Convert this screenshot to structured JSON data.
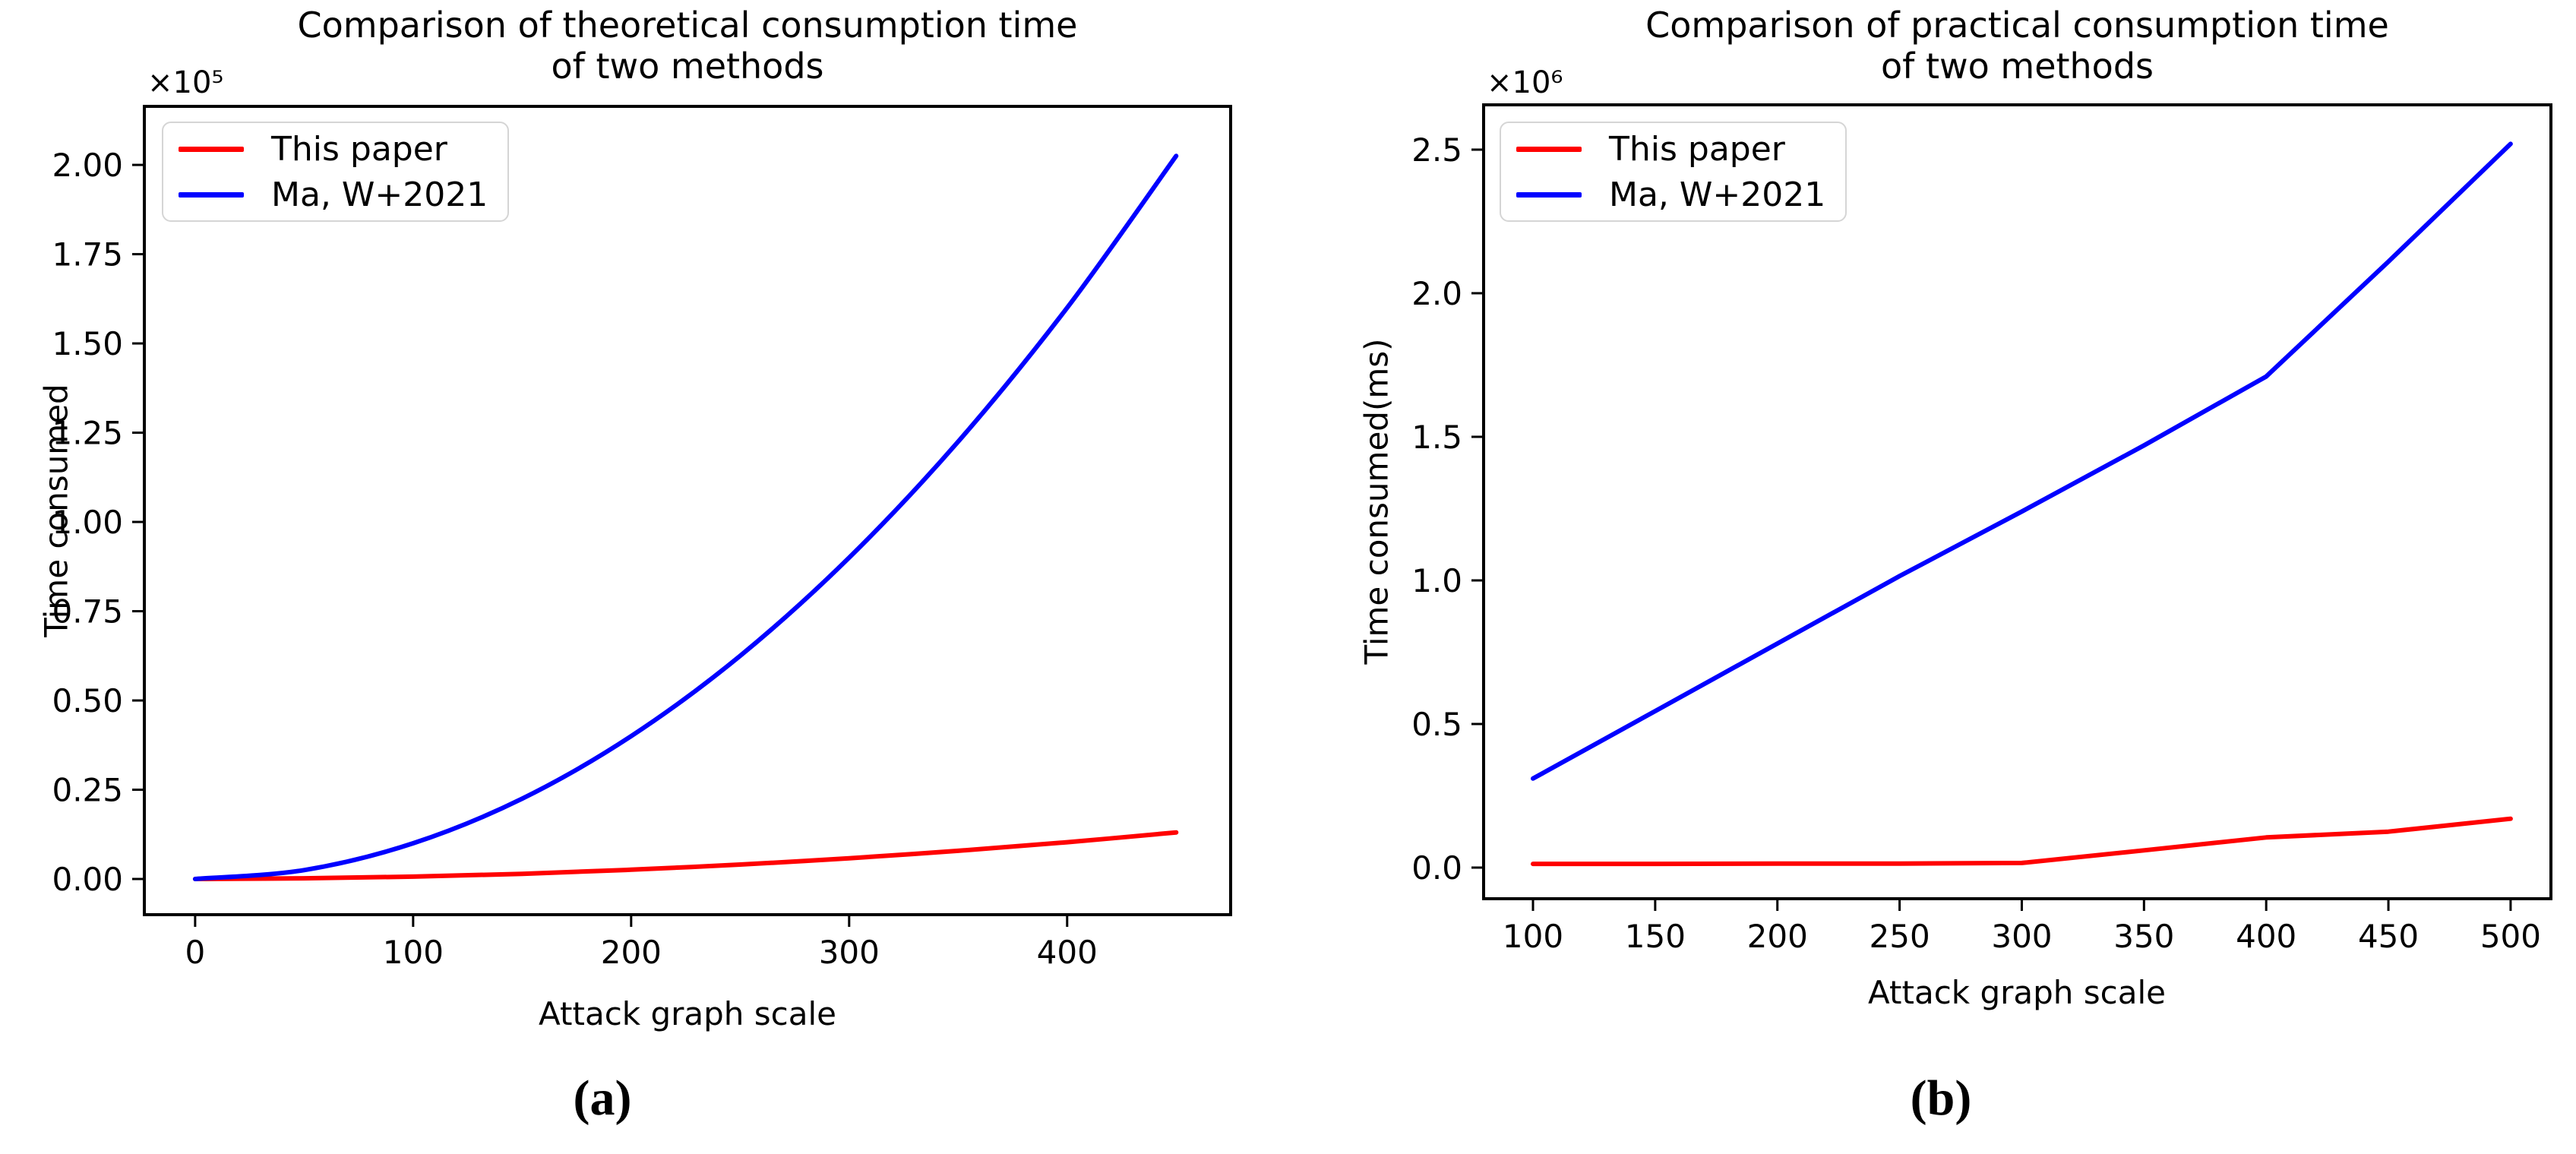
{
  "figure": {
    "background": "#ffffff",
    "axis_color": "#000000",
    "text_color": "#000000",
    "legend_border_color": "#d5d5d5"
  },
  "chart_data": [
    {
      "id": "a",
      "type": "line",
      "title_line1": "Comparison of theoretical consumption time",
      "title_line2": "of two methods",
      "xlabel": "Attack graph scale",
      "ylabel": "Time consumed",
      "y_offset_label": "×10⁵",
      "caption": "(a)",
      "grid": false,
      "legend_position": "upper left",
      "xlim": [
        -23.3,
        475.0
      ],
      "ylim": [
        -10000,
        216400
      ],
      "x_tick_values": [
        0,
        100,
        200,
        300,
        400
      ],
      "x_tick_labels": [
        "0",
        "100",
        "200",
        "300",
        "400"
      ],
      "y_tick_values": [
        0,
        25000,
        50000,
        75000,
        100000,
        125000,
        150000,
        175000,
        200000
      ],
      "y_tick_labels": [
        "0.00",
        "0.25",
        "0.50",
        "0.75",
        "1.00",
        "1.25",
        "1.50",
        "1.75",
        "2.00"
      ],
      "series": [
        {
          "name": "This paper",
          "color": "#ff0000",
          "smooth": true,
          "x": [
            0,
            50,
            100,
            150,
            200,
            250,
            300,
            350,
            400,
            450
          ],
          "y": [
            0,
            200,
            650,
            1450,
            2600,
            4050,
            5800,
            7900,
            10300,
            13050
          ]
        },
        {
          "name": "Ma, W+2021",
          "color": "#0000ff",
          "smooth": true,
          "x": [
            0,
            50,
            100,
            150,
            200,
            250,
            300,
            350,
            400,
            450
          ],
          "y": [
            0,
            2500,
            10000,
            22500,
            40000,
            62500,
            90000,
            122500,
            160000,
            202500
          ]
        }
      ]
    },
    {
      "id": "b",
      "type": "line",
      "title_line1": "Comparison of practical consumption time",
      "title_line2": "of two methods",
      "xlabel": "Attack graph scale",
      "ylabel": "Time consumed(ms)",
      "y_offset_label": "×10⁶",
      "caption": "(b)",
      "grid": false,
      "legend_position": "upper left",
      "xlim": [
        79.8,
        516.5
      ],
      "ylim": [
        -108500,
        2656000
      ],
      "x_tick_values": [
        100,
        150,
        200,
        250,
        300,
        350,
        400,
        450,
        500
      ],
      "x_tick_labels": [
        "100",
        "150",
        "200",
        "250",
        "300",
        "350",
        "400",
        "450",
        "500"
      ],
      "y_tick_values": [
        0,
        500000,
        1000000,
        1500000,
        2000000,
        2500000
      ],
      "y_tick_labels": [
        "0.0",
        "0.5",
        "1.0",
        "1.5",
        "2.0",
        "2.5"
      ],
      "series": [
        {
          "name": "This paper",
          "color": "#ff0000",
          "smooth": false,
          "x": [
            100,
            150,
            200,
            250,
            300,
            350,
            400,
            450,
            500
          ],
          "y": [
            13000,
            13000,
            14000,
            14000,
            16000,
            60000,
            105000,
            125000,
            170000
          ]
        },
        {
          "name": "Ma, W+2021",
          "color": "#0000ff",
          "smooth": false,
          "x": [
            100,
            150,
            200,
            250,
            300,
            350,
            400,
            450,
            500
          ],
          "y": [
            310000,
            545000,
            780000,
            1015000,
            1240000,
            1470000,
            1710000,
            2110000,
            2520000
          ]
        }
      ]
    }
  ]
}
